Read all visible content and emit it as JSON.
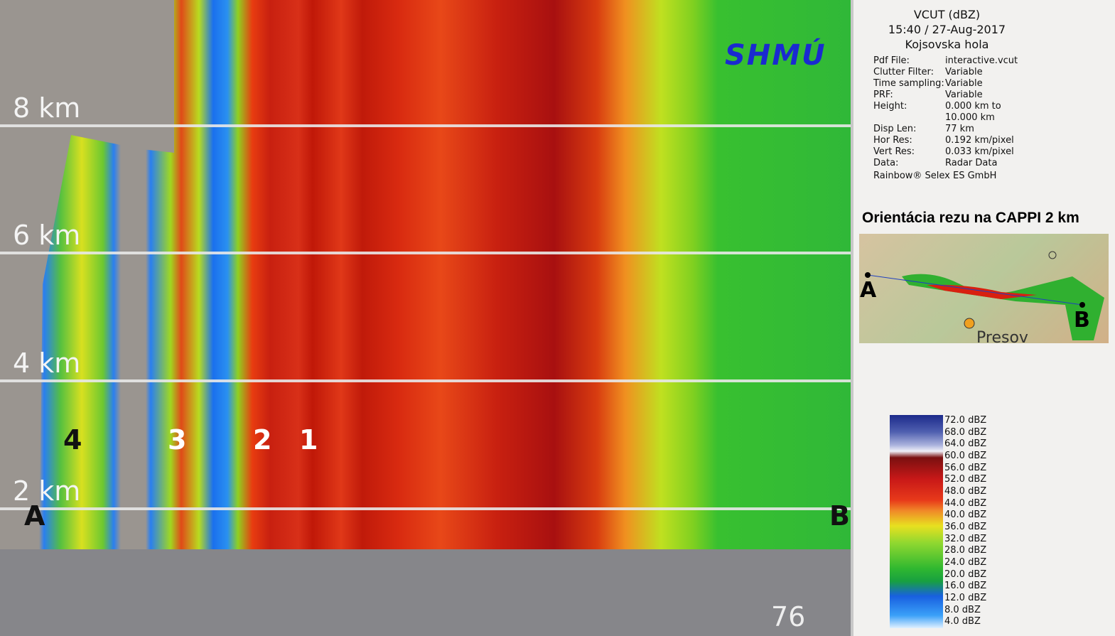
{
  "panel": {
    "height_labels": [
      "8 km",
      "6 km",
      "4 km",
      "2 km"
    ],
    "cell_labels": [
      "4",
      "3",
      "2",
      "1"
    ],
    "end_labels": [
      "A",
      "B"
    ],
    "distance_label": "76 km",
    "logo": "SHMÚ"
  },
  "info": {
    "title": "VCUT (dBZ)",
    "time": "15:40 / 27-Aug-2017",
    "site": "Kojsovska hola",
    "fields": [
      {
        "label": "Pdf File:",
        "value": [
          "interactive.vcut"
        ]
      },
      {
        "label": "Clutter Filter:",
        "value": [
          "Variable"
        ]
      },
      {
        "label": "Time sampling:",
        "value": [
          "Variable"
        ]
      },
      {
        "label": "PRF:",
        "value": [
          "Variable"
        ]
      },
      {
        "label": "Height:",
        "value": [
          "0.000 km to",
          "10.000 km"
        ]
      },
      {
        "label": "Disp Len:",
        "value": [
          "77 km"
        ]
      },
      {
        "label": "Hor Res:",
        "value": [
          "0.192 km/pixel"
        ]
      },
      {
        "label": "Vert Res:",
        "value": [
          "0.033 km/pixel"
        ]
      },
      {
        "label": "Data:",
        "value": [
          "Radar Data"
        ]
      }
    ],
    "credit": "Rainbow® Selex ES GmbH"
  },
  "map": {
    "title": "Orientácia rezu na CAPPI 2 km",
    "labels": [
      "A",
      "B",
      "Presov"
    ]
  },
  "legend": {
    "labels": [
      "72.0 dBZ",
      "68.0 dBZ",
      "64.0 dBZ",
      "60.0 dBZ",
      "56.0 dBZ",
      "52.0 dBZ",
      "48.0 dBZ",
      "44.0 dBZ",
      "40.0 dBZ",
      "36.0 dBZ",
      "32.0 dBZ",
      "28.0 dBZ",
      "24.0 dBZ",
      "20.0 dBZ",
      "16.0 dBZ",
      "12.0 dBZ",
      "8.0 dBZ",
      "4.0 dBZ"
    ]
  }
}
